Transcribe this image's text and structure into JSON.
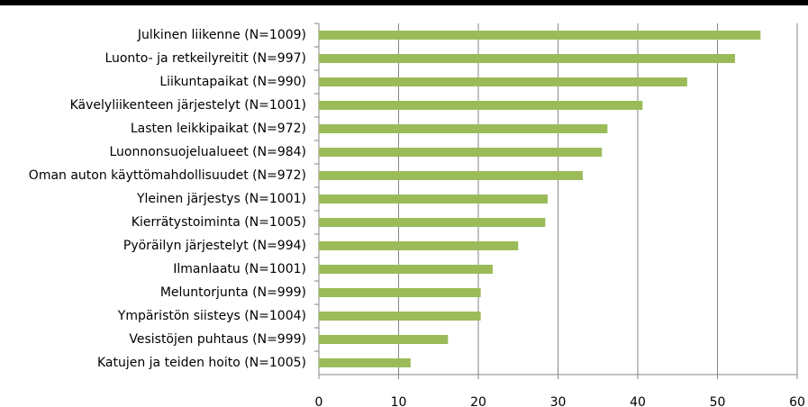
{
  "chart_data": {
    "type": "barh",
    "categories": [
      "Julkinen liikenne (N=1009)",
      "Luonto- ja retkeilyreitit (N=997)",
      "Liikuntapaikat (N=990)",
      "Kävelyliikenteen järjestelyt (N=1001)",
      "Lasten leikkipaikat (N=972)",
      "Luonnonsuojelualueet (N=984)",
      "Oman auton käyttömahdollisuudet (N=972)",
      "Yleinen järjestys (N=1001)",
      "Kierrätystoiminta (N=1005)",
      "Pyöräilyn järjestelyt (N=994)",
      "Ilmanlaatu (N=1001)",
      "Meluntorjunta (N=999)",
      "Ympäristön siisteys (N=1004)",
      "Vesistöjen puhtaus (N=999)",
      "Katujen ja teiden hoito (N=1005)"
    ],
    "values": [
      55.4,
      52.2,
      46.2,
      40.6,
      36.2,
      35.5,
      33.1,
      28.7,
      28.4,
      25.0,
      21.8,
      20.3,
      20.3,
      16.2,
      11.5
    ],
    "color": "#9bbb59",
    "xlim": [
      0,
      60
    ],
    "xticks": [
      0,
      10,
      20,
      30,
      40,
      50,
      60
    ],
    "grid": true
  }
}
